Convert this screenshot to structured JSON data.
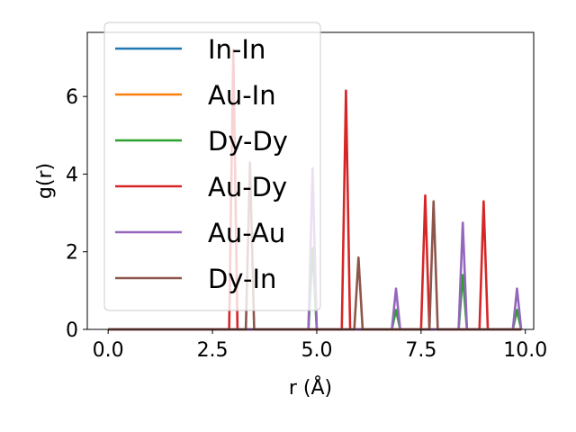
{
  "chart_data": {
    "type": "line",
    "title": "",
    "xlabel": "r (Å)",
    "ylabel": "g(r)",
    "xlim": [
      -0.5,
      10.2
    ],
    "ylim": [
      0,
      7.65
    ],
    "x_ticks": [
      0.0,
      2.5,
      5.0,
      7.5,
      10.0
    ],
    "x_tick_labels": [
      "0.0",
      "2.5",
      "5.0",
      "7.5",
      "10.0"
    ],
    "y_ticks": [
      0,
      2,
      4,
      6
    ],
    "y_tick_labels": [
      "0",
      "2",
      "4",
      "6"
    ],
    "grid": false,
    "legend_position": "upper-left",
    "peak_half_width": 0.1,
    "x_end": 9.9,
    "series": [
      {
        "name": "In-In",
        "color": "#1f77b4",
        "peaks": [
          [
            3.0,
            0.0
          ],
          [
            4.9,
            0.0
          ],
          [
            6.9,
            0.0
          ]
        ]
      },
      {
        "name": "Au-In",
        "color": "#ff7f0e",
        "peaks": [
          [
            3.1,
            0.0
          ],
          [
            5.7,
            0.0
          ],
          [
            7.6,
            0.0
          ],
          [
            9.0,
            0.0
          ]
        ]
      },
      {
        "name": "Dy-Dy",
        "color": "#2ca02c",
        "peaks": [
          [
            4.9,
            2.1
          ],
          [
            6.9,
            0.5
          ],
          [
            8.5,
            1.4
          ],
          [
            9.8,
            0.5
          ]
        ]
      },
      {
        "name": "Au-Dy",
        "color": "#d62728",
        "peaks": [
          [
            3.0,
            7.2
          ],
          [
            5.7,
            6.15
          ],
          [
            7.6,
            3.45
          ],
          [
            9.0,
            3.3
          ]
        ]
      },
      {
        "name": "Au-Au",
        "color": "#9467bd",
        "peaks": [
          [
            4.9,
            4.15
          ],
          [
            6.9,
            1.05
          ],
          [
            8.5,
            2.75
          ],
          [
            9.8,
            1.05
          ]
        ]
      },
      {
        "name": "Dy-In",
        "color": "#8c564b",
        "peaks": [
          [
            3.4,
            4.3
          ],
          [
            6.0,
            1.85
          ],
          [
            7.8,
            3.3
          ]
        ]
      }
    ]
  }
}
